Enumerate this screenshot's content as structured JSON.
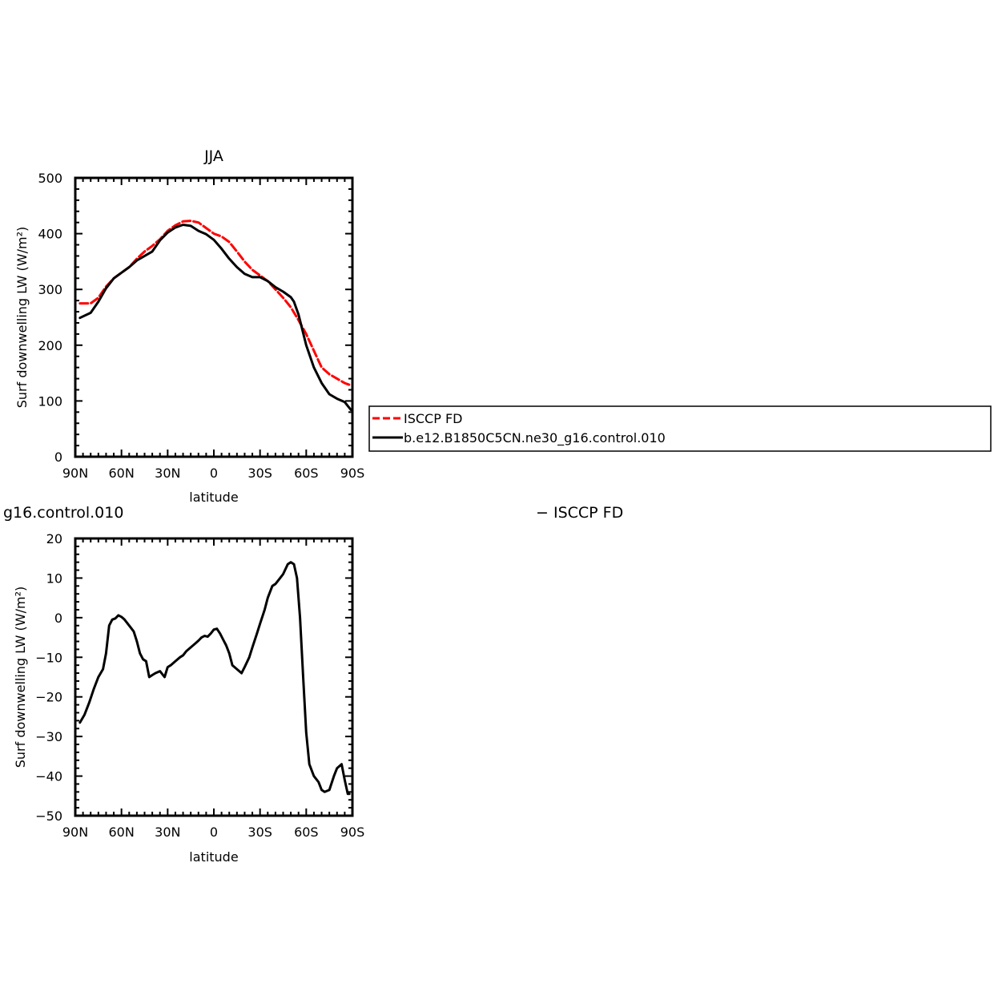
{
  "chart_data": [
    {
      "type": "line",
      "title": "JJA",
      "xlabel": "latitude",
      "ylabel": "Surf downwelling LW (W/m²)",
      "xlim": [
        90,
        -90
      ],
      "ylim": [
        0,
        500
      ],
      "xticks": [
        "90N",
        "60N",
        "30N",
        "0",
        "30S",
        "60S",
        "90S"
      ],
      "yticks": [
        "0",
        "100",
        "200",
        "300",
        "400",
        "500"
      ],
      "series": [
        {
          "name": "ISCCP FD",
          "color": "#ff0000",
          "style": "dashed",
          "x": [
            87,
            80,
            75,
            70,
            65,
            60,
            55,
            50,
            45,
            40,
            35,
            30,
            25,
            20,
            15,
            10,
            5,
            0,
            -5,
            -10,
            -15,
            -20,
            -25,
            -30,
            -35,
            -40,
            -45,
            -50,
            -55,
            -60,
            -65,
            -70,
            -75,
            -80,
            -85,
            -89
          ],
          "y": [
            275,
            275,
            285,
            305,
            320,
            330,
            340,
            355,
            368,
            378,
            390,
            405,
            415,
            422,
            423,
            420,
            410,
            400,
            395,
            385,
            368,
            350,
            335,
            325,
            315,
            300,
            285,
            268,
            245,
            220,
            190,
            160,
            148,
            140,
            132,
            128
          ]
        },
        {
          "name": "b.e12.B1850C5CN.ne30_g16.control.010",
          "color": "#000000",
          "style": "solid",
          "x": [
            87,
            80,
            75,
            70,
            65,
            60,
            55,
            50,
            45,
            40,
            35,
            30,
            25,
            20,
            15,
            10,
            5,
            0,
            -5,
            -10,
            -15,
            -20,
            -25,
            -30,
            -35,
            -40,
            -45,
            -50,
            -52,
            -55,
            -60,
            -65,
            -70,
            -75,
            -80,
            -85,
            -89
          ],
          "y": [
            249,
            258,
            278,
            302,
            320,
            330,
            340,
            352,
            360,
            368,
            388,
            402,
            411,
            416,
            414,
            405,
            399,
            389,
            373,
            355,
            340,
            328,
            322,
            322,
            315,
            304,
            296,
            286,
            278,
            255,
            200,
            160,
            132,
            112,
            104,
            98,
            84
          ]
        }
      ],
      "legend": "right"
    },
    {
      "type": "line",
      "title": "g16.control.010",
      "title_right": "− ISCCP FD",
      "xlabel": "latitude",
      "ylabel": "Surf downwelling LW (W/m²)",
      "xlim": [
        90,
        -90
      ],
      "ylim": [
        -50,
        20
      ],
      "xticks": [
        "90N",
        "60N",
        "30N",
        "0",
        "30S",
        "60S",
        "90S"
      ],
      "yticks": [
        "−50",
        "−40",
        "−30",
        "−20",
        "−10",
        "0",
        "10",
        "20"
      ],
      "series": [
        {
          "name": "",
          "color": "#000000",
          "style": "solid",
          "x": [
            87,
            84,
            81,
            78,
            75,
            72,
            70,
            68,
            66,
            64,
            62,
            60,
            58,
            56,
            54,
            52,
            50,
            48,
            46,
            44,
            42,
            40,
            38,
            35,
            32,
            30,
            28,
            25,
            22,
            20,
            18,
            15,
            12,
            10,
            8,
            6,
            4,
            2,
            0,
            -2,
            -4,
            -6,
            -8,
            -10,
            -12,
            -15,
            -18,
            -20,
            -23,
            -25,
            -28,
            -30,
            -33,
            -35,
            -38,
            -40,
            -43,
            -45,
            -48,
            -50,
            -52,
            -54,
            -56,
            -58,
            -60,
            -62,
            -65,
            -68,
            -70,
            -72,
            -75,
            -78,
            -80,
            -83,
            -85,
            -87,
            -88
          ],
          "y": [
            -26.5,
            -24.5,
            -21.5,
            -18,
            -15,
            -13,
            -9,
            -2,
            -0.5,
            -0.2,
            0.6,
            0.2,
            -0.5,
            -1.5,
            -2.5,
            -3.5,
            -6,
            -9,
            -10.5,
            -11,
            -15,
            -14.5,
            -14,
            -13.5,
            -15,
            -12.5,
            -12,
            -11,
            -10,
            -9.5,
            -8.5,
            -7.5,
            -6.5,
            -5.8,
            -5,
            -4.6,
            -4.8,
            -4,
            -3,
            -2.8,
            -4,
            -5.5,
            -7,
            -9,
            -12,
            -13,
            -14,
            -12.5,
            -10,
            -7.5,
            -4,
            -1.5,
            2,
            5,
            8,
            8.5,
            10,
            11,
            13.5,
            14,
            13.5,
            10,
            0,
            -15,
            -29,
            -37,
            -40,
            -41.5,
            -43.5,
            -44,
            -43.5,
            -40,
            -38,
            -37,
            -41,
            -44.5,
            -44.5
          ]
        }
      ]
    }
  ]
}
